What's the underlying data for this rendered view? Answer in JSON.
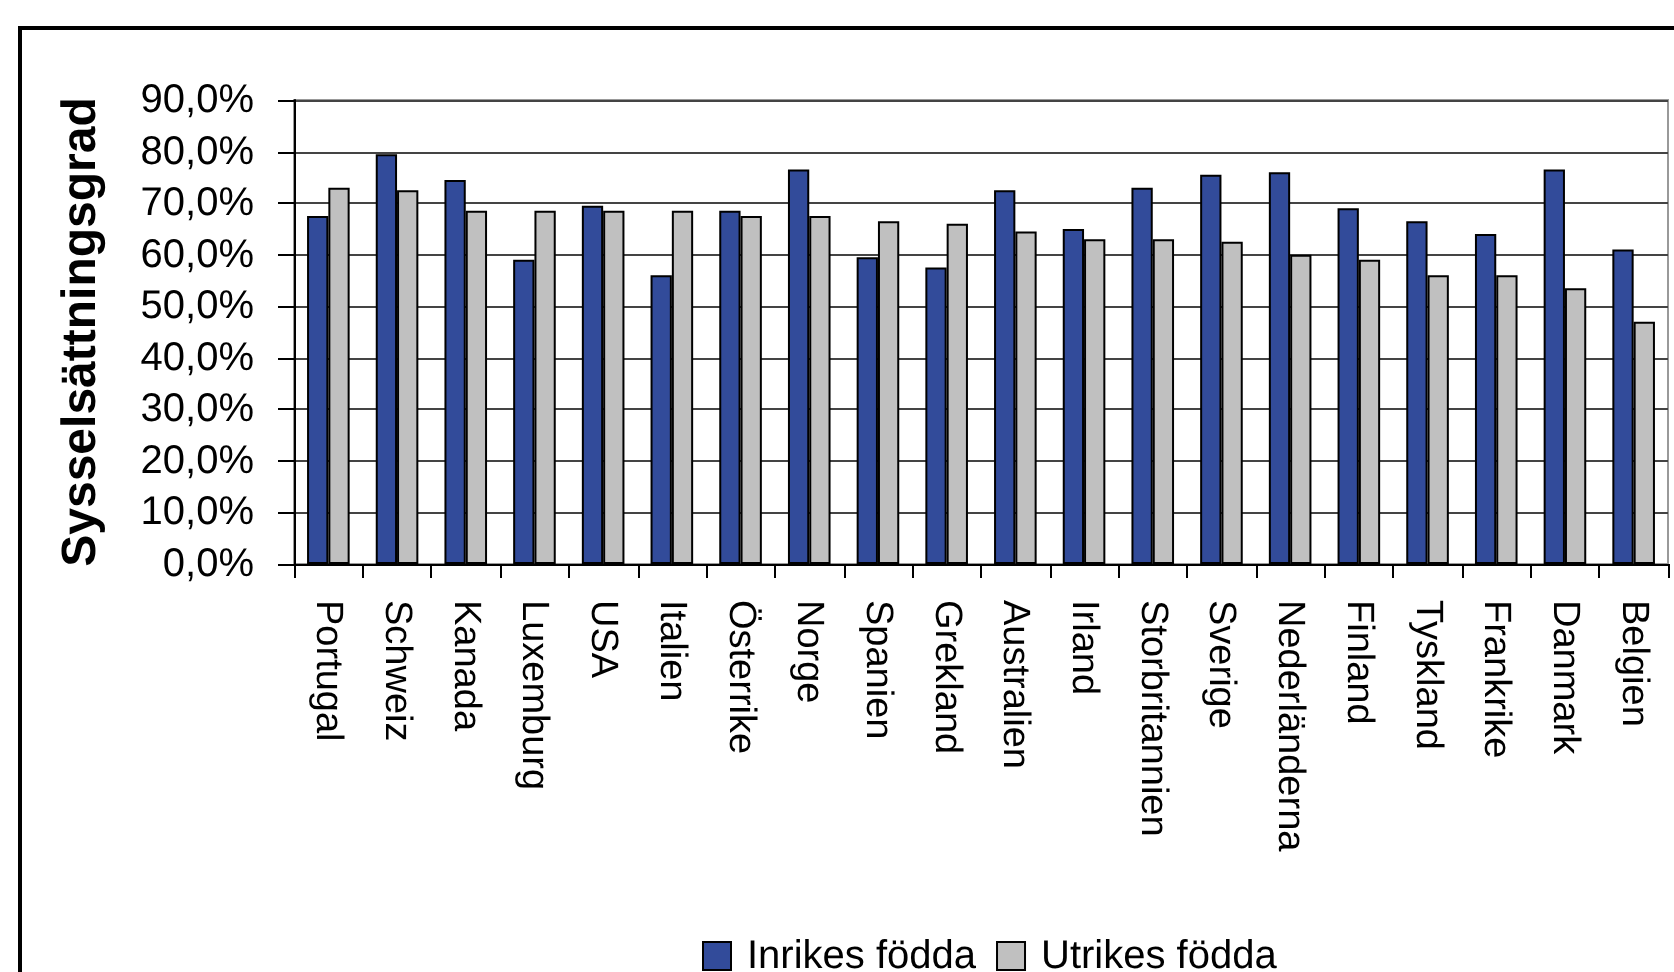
{
  "chart_data": {
    "type": "bar",
    "ylabel": "Sysselsättningsgrad",
    "categories": [
      "Portugal",
      "Schweiz",
      "Kanada",
      "Luxemburg",
      "USA",
      "Italien",
      "Österrike",
      "Norge",
      "Spanien",
      "Grekland",
      "Australien",
      "Irland",
      "Storbritannien",
      "Sverige",
      "Nederländerna",
      "Finland",
      "Tyskland",
      "Frankrike",
      "Danmark",
      "Belgien"
    ],
    "series": [
      {
        "name": "Inrikes födda",
        "color": "#324b9a",
        "values": [
          67.5,
          79.5,
          74.5,
          59,
          69.5,
          56,
          68.5,
          76.5,
          59.5,
          57.5,
          72.5,
          65,
          73,
          75.5,
          76,
          69,
          66.5,
          64,
          76.5,
          61
        ]
      },
      {
        "name": "Utrikes födda",
        "color": "#c0c0c0",
        "values": [
          73,
          72.5,
          68.5,
          68.5,
          68.5,
          68.5,
          67.5,
          67.5,
          66.5,
          66,
          64.5,
          63,
          63,
          62.5,
          60,
          59,
          56,
          56,
          53.5,
          47
        ]
      }
    ],
    "ylim": [
      0,
      90
    ],
    "yticks": [
      {
        "value": 0,
        "label": "0,0%"
      },
      {
        "value": 10,
        "label": "10,0%"
      },
      {
        "value": 20,
        "label": "20,0%"
      },
      {
        "value": 30,
        "label": "30,0%"
      },
      {
        "value": 40,
        "label": "40,0%"
      },
      {
        "value": 50,
        "label": "50,0%"
      },
      {
        "value": 60,
        "label": "60,0%"
      },
      {
        "value": 70,
        "label": "70,0%"
      },
      {
        "value": 80,
        "label": "80,0%"
      },
      {
        "value": 90,
        "label": "90,0%"
      }
    ],
    "grid": "y",
    "legend": "bottom"
  }
}
